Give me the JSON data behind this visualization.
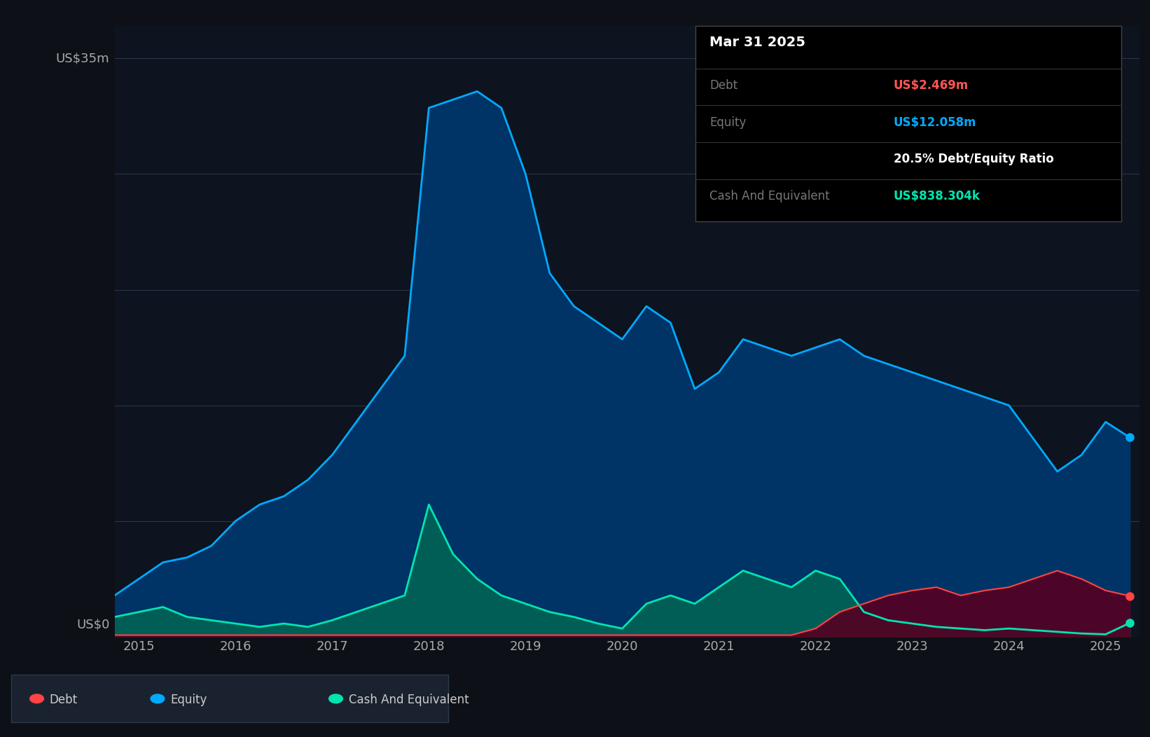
{
  "background_color": "#0d1117",
  "plot_bg_color": "#0d1420",
  "grid_color": "#2a3a4a",
  "title_color": "#ffffff",
  "ylabel_text": "US$35m",
  "y0_text": "US$0",
  "equity_color": "#00aaff",
  "equity_fill": "#003366",
  "cash_color": "#00e5b0",
  "cash_fill": "#004433",
  "debt_color": "#ff4444",
  "debt_fill": "#330011",
  "legend_bg": "#1a2230",
  "tooltip_bg": "#000000",
  "tooltip_border": "#333333",
  "x_years": [
    2014.75,
    2015.0,
    2015.25,
    2015.5,
    2015.75,
    2016.0,
    2016.25,
    2016.5,
    2016.75,
    2017.0,
    2017.25,
    2017.5,
    2017.75,
    2018.0,
    2018.25,
    2018.5,
    2018.75,
    2019.0,
    2019.25,
    2019.5,
    2019.75,
    2020.0,
    2020.25,
    2020.5,
    2020.75,
    2021.0,
    2021.25,
    2021.5,
    2021.75,
    2022.0,
    2022.25,
    2022.5,
    2022.75,
    2023.0,
    2023.25,
    2023.5,
    2023.75,
    2024.0,
    2024.25,
    2024.5,
    2024.75,
    2025.0,
    2025.25
  ],
  "equity": [
    2.5,
    3.5,
    4.5,
    4.8,
    5.5,
    7.0,
    8.0,
    8.5,
    9.5,
    11.0,
    13.0,
    15.0,
    17.0,
    32.0,
    32.5,
    33.0,
    32.0,
    28.0,
    22.0,
    20.0,
    19.0,
    18.0,
    20.0,
    19.0,
    15.0,
    16.0,
    18.0,
    17.5,
    17.0,
    17.5,
    18.0,
    17.0,
    16.5,
    16.0,
    15.5,
    15.0,
    14.5,
    14.0,
    12.0,
    10.0,
    11.0,
    13.0,
    12.058
  ],
  "cash": [
    1.2,
    1.5,
    1.8,
    1.2,
    1.0,
    0.8,
    0.6,
    0.8,
    0.6,
    1.0,
    1.5,
    2.0,
    2.5,
    8.0,
    5.0,
    3.5,
    2.5,
    2.0,
    1.5,
    1.2,
    0.8,
    0.5,
    2.0,
    2.5,
    2.0,
    3.0,
    4.0,
    3.5,
    3.0,
    4.0,
    3.5,
    1.5,
    1.0,
    0.8,
    0.6,
    0.5,
    0.4,
    0.5,
    0.4,
    0.3,
    0.2,
    0.15,
    0.838
  ],
  "debt": [
    0.1,
    0.1,
    0.1,
    0.1,
    0.1,
    0.1,
    0.1,
    0.1,
    0.1,
    0.1,
    0.1,
    0.1,
    0.1,
    0.1,
    0.1,
    0.1,
    0.1,
    0.1,
    0.1,
    0.1,
    0.1,
    0.1,
    0.1,
    0.1,
    0.1,
    0.1,
    0.1,
    0.1,
    0.1,
    0.5,
    1.5,
    2.0,
    2.5,
    2.8,
    3.0,
    2.5,
    2.8,
    3.0,
    3.5,
    4.0,
    3.5,
    2.8,
    2.469
  ],
  "xlim": [
    2014.75,
    2025.35
  ],
  "ylim": [
    0,
    37
  ],
  "xticks": [
    2015,
    2016,
    2017,
    2018,
    2019,
    2020,
    2021,
    2022,
    2023,
    2024,
    2025
  ],
  "yticks": [
    0,
    35
  ],
  "tooltip_title": "Mar 31 2025",
  "tooltip_debt": "US$2.469m",
  "tooltip_equity": "US$12.058m",
  "tooltip_ratio": "20.5% Debt/Equity Ratio",
  "tooltip_cash": "US$838.304k",
  "legend_items": [
    "Debt",
    "Equity",
    "Cash And Equivalent"
  ]
}
